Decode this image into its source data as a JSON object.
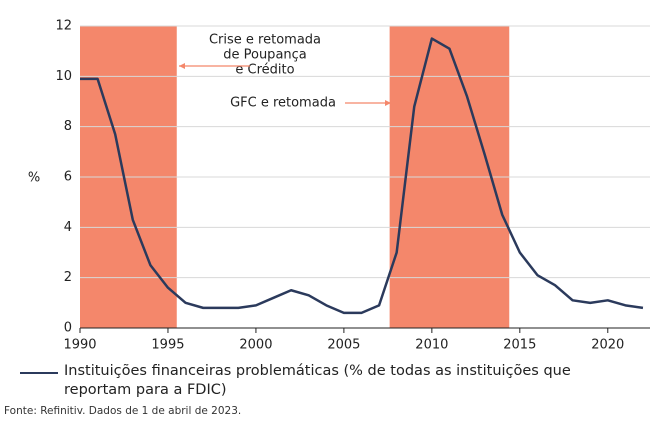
{
  "chart_data": {
    "type": "line",
    "y_label": "%",
    "x": [
      1990,
      1991,
      1992,
      1993,
      1994,
      1995,
      1996,
      1997,
      1998,
      1999,
      2000,
      2001,
      2002,
      2003,
      2004,
      2005,
      2006,
      2007,
      2008,
      2009,
      2010,
      2011,
      2012,
      2013,
      2014,
      2015,
      2016,
      2017,
      2018,
      2019,
      2020,
      2021,
      2022
    ],
    "series": [
      {
        "name": "Instituições financeiras problemáticas (% de todas as instituições que reportam para a FDIC)",
        "color": "#2b3a5c",
        "values": [
          9.9,
          9.9,
          7.7,
          4.3,
          2.5,
          1.6,
          1.0,
          0.8,
          0.8,
          0.8,
          0.9,
          1.2,
          1.5,
          1.3,
          0.9,
          0.6,
          0.6,
          0.9,
          3.0,
          8.8,
          11.5,
          11.1,
          9.2,
          6.9,
          4.5,
          3.0,
          2.1,
          1.7,
          1.1,
          1.0,
          1.1,
          0.9,
          0.8
        ]
      }
    ],
    "shaded_regions": [
      {
        "start": 1990,
        "end": 1995.5,
        "color": "#f4876b"
      },
      {
        "start": 2007.6,
        "end": 2014.4,
        "color": "#f4876b"
      }
    ],
    "annotations": [
      {
        "lines": [
          "Crise e retomada",
          "de Poupança",
          "e Crédito"
        ]
      },
      {
        "lines": [
          "GFC e retomada"
        ]
      }
    ],
    "xlim": [
      1990,
      2022.4
    ],
    "xticks": [
      1990,
      1995,
      2000,
      2005,
      2010,
      2015,
      2020
    ],
    "ylim": [
      0,
      12
    ],
    "yticks": [
      0,
      2,
      4,
      6,
      8,
      10,
      12
    ],
    "grid": true,
    "source": "Fonte: Refinitiv. Dados de 1 de abril de 2023."
  }
}
